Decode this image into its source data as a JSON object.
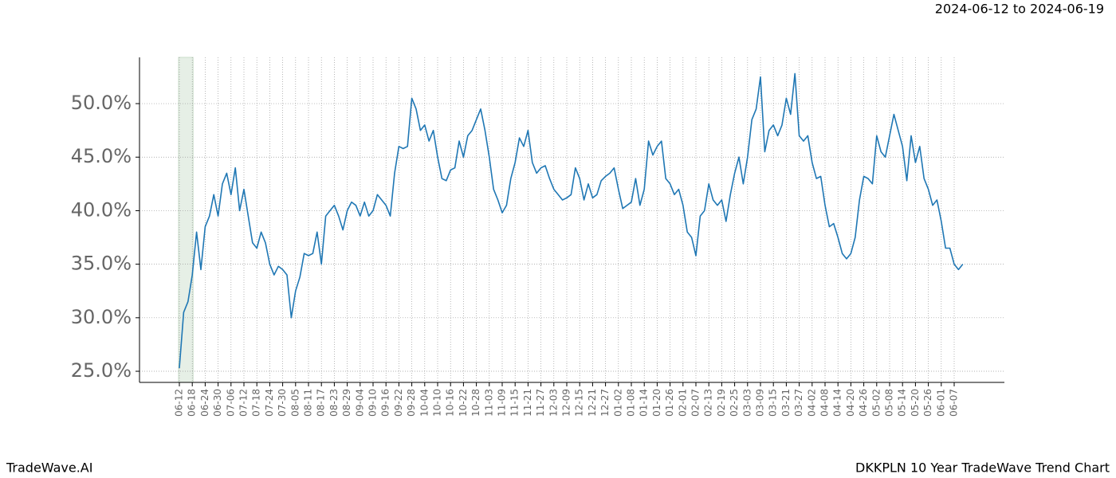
{
  "chart_data": {
    "type": "line",
    "title": "DKKPLN 10 Year TradeWave Trend Chart",
    "subtitle": "2024-06-12 to 2024-06-19",
    "brand": "TradeWave.AI",
    "categories": [
      "06-12",
      null,
      null,
      "06-18",
      null,
      null,
      "06-24",
      null,
      null,
      "06-30",
      null,
      null,
      "07-06",
      null,
      null,
      "07-12",
      null,
      null,
      "07-18",
      null,
      null,
      "07-24",
      null,
      null,
      "07-30",
      null,
      null,
      "08-05",
      null,
      null,
      "08-11",
      null,
      null,
      "08-17",
      null,
      null,
      "08-23",
      null,
      null,
      "08-29",
      null,
      null,
      "09-04",
      null,
      null,
      "09-10",
      null,
      null,
      "09-16",
      null,
      null,
      "09-22",
      null,
      null,
      "09-28",
      null,
      null,
      "10-04",
      null,
      null,
      "10-10",
      null,
      null,
      "10-16",
      null,
      null,
      "10-22",
      null,
      null,
      "10-28",
      null,
      null,
      "11-03",
      null,
      null,
      "11-09",
      null,
      null,
      "11-15",
      null,
      null,
      "11-21",
      null,
      null,
      "11-27",
      null,
      null,
      "12-03",
      null,
      null,
      "12-09",
      null,
      null,
      "12-15",
      null,
      null,
      "12-21",
      null,
      null,
      "12-27",
      null,
      null,
      "01-02",
      null,
      null,
      "01-08",
      null,
      null,
      "01-14",
      null,
      null,
      "01-20",
      null,
      null,
      "01-26",
      null,
      null,
      "02-01",
      null,
      null,
      "02-07",
      null,
      null,
      "02-13",
      null,
      null,
      "02-19",
      null,
      null,
      "02-25",
      null,
      null,
      "03-03",
      null,
      null,
      "03-09",
      null,
      null,
      "03-15",
      null,
      null,
      "03-21",
      null,
      null,
      "03-27",
      null,
      null,
      "04-02",
      null,
      null,
      "04-08",
      null,
      null,
      "04-14",
      null,
      null,
      "04-20",
      null,
      null,
      "04-26",
      null,
      null,
      "05-02",
      null,
      null,
      "05-08",
      null,
      null,
      "05-14",
      null,
      null,
      "05-20",
      null,
      null,
      "05-26",
      null,
      null,
      "06-01",
      null,
      null,
      "06-07",
      null,
      null
    ],
    "series": [
      {
        "color": "#1f77b4",
        "values": [
          25.3,
          30.5,
          31.5,
          34.0,
          38.0,
          34.5,
          38.5,
          39.5,
          41.5,
          39.5,
          42.5,
          43.5,
          41.5,
          44.0,
          40.0,
          42.0,
          39.5,
          37.0,
          36.5,
          38.0,
          37.0,
          35.0,
          34.0,
          34.8,
          34.5,
          34.0,
          30.0,
          32.5,
          33.8,
          36.0,
          35.8,
          36.0,
          38.0,
          35.0,
          39.5,
          40.0,
          40.5,
          39.5,
          38.2,
          40.0,
          40.8,
          40.5,
          39.5,
          40.8,
          39.5,
          40.0,
          41.5,
          41.0,
          40.5,
          39.5,
          43.5,
          46.0,
          45.8,
          46.0,
          50.5,
          49.5,
          47.5,
          48.0,
          46.5,
          47.5,
          45.0,
          43.0,
          42.8,
          43.8,
          44.0,
          46.5,
          45.0,
          47.0,
          47.5,
          48.5,
          49.5,
          47.5,
          45.0,
          42.0,
          41.0,
          39.8,
          40.5,
          43.0,
          44.5,
          46.8,
          46.0,
          47.5,
          44.5,
          43.5,
          44.0,
          44.2,
          43.0,
          42.0,
          41.5,
          41.0,
          41.2,
          41.5,
          44.0,
          43.0,
          41.0,
          42.5,
          41.2,
          41.5,
          42.8,
          43.2,
          43.5,
          44.0,
          42.0,
          40.2,
          40.5,
          40.8,
          43.0,
          40.5,
          42.0,
          46.5,
          45.2,
          46.0,
          46.5,
          43.0,
          42.5,
          41.5,
          42.0,
          40.5,
          38.0,
          37.5,
          35.8,
          39.5,
          40.0,
          42.5,
          41.0,
          40.5,
          41.0,
          39.0,
          41.5,
          43.5,
          45.0,
          42.5,
          45.0,
          48.5,
          49.5,
          52.5,
          45.5,
          47.5,
          48.0,
          47.0,
          48.0,
          50.5,
          49.0,
          52.8,
          47.0,
          46.5,
          47.0,
          44.5,
          43.0,
          43.2,
          40.5,
          38.5,
          38.8,
          37.5,
          36.0,
          35.5,
          36.0,
          37.5,
          41.0,
          43.2,
          43.0,
          42.5,
          47.0,
          45.5,
          45.0,
          47.0,
          49.0,
          47.5,
          46.0,
          42.8,
          47.0,
          44.5,
          46.0,
          43.0,
          42.0,
          40.5,
          41.0,
          39.0,
          36.5,
          36.5,
          35.0,
          34.5,
          35.0
        ]
      }
    ],
    "ylim": [
      23.96,
      54.32
    ],
    "yticks": [
      {
        "value": 25,
        "label": "25.0%"
      },
      {
        "value": 30,
        "label": "30.0%"
      },
      {
        "value": 35,
        "label": "35.0%"
      },
      {
        "value": 40,
        "label": "40.0%"
      },
      {
        "value": 45,
        "label": "45.0%"
      },
      {
        "value": 50,
        "label": "50.0%"
      }
    ],
    "grid": true
  }
}
